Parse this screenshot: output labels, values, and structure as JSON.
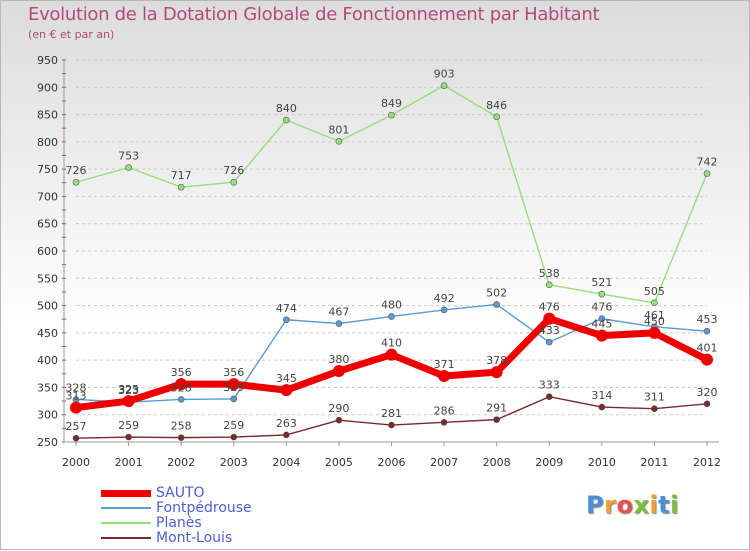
{
  "title": "Evolution de la Dotation Globale de Fonctionnement par Habitant",
  "subtitle": "(en € et par an)",
  "logo": {
    "text": "Proxiti",
    "letters": [
      {
        "char": "P",
        "color": "#4a8fd8"
      },
      {
        "char": "r",
        "color": "#f0a030"
      },
      {
        "char": "o",
        "color": "#e85050"
      },
      {
        "char": "x",
        "color": "#7cc040"
      },
      {
        "char": "i",
        "color": "#f0a030"
      },
      {
        "char": "t",
        "color": "#4a8fd8"
      },
      {
        "char": "i",
        "color": "#7cc040"
      }
    ]
  },
  "chart_data": {
    "type": "line",
    "x": [
      "2000",
      "2001",
      "2002",
      "2003",
      "2004",
      "2005",
      "2006",
      "2007",
      "2008",
      "2009",
      "2010",
      "2011",
      "2012"
    ],
    "ylim": [
      250,
      950
    ],
    "yticks": [
      250,
      300,
      350,
      400,
      450,
      500,
      550,
      600,
      650,
      700,
      750,
      800,
      850,
      900,
      950
    ],
    "grid": "horizontal dashed",
    "legend_position": "bottom-left",
    "series": [
      {
        "name": "SAUTO",
        "color": "#ee0000",
        "values": [
          313,
          325,
          356,
          356,
          345,
          380,
          410,
          371,
          378,
          476,
          445,
          450,
          401
        ]
      },
      {
        "name": "Fontpédrouse",
        "color": "#5b9bd5",
        "values": [
          328,
          323,
          328,
          329,
          474,
          467,
          480,
          492,
          502,
          433,
          476,
          461,
          453
        ]
      },
      {
        "name": "Planès",
        "color": "#96e07a",
        "values": [
          726,
          753,
          717,
          726,
          840,
          801,
          849,
          903,
          846,
          538,
          521,
          505,
          742
        ]
      },
      {
        "name": "Mont-Louis",
        "color": "#7a2a2a",
        "values": [
          257,
          259,
          258,
          259,
          263,
          290,
          281,
          286,
          291,
          333,
          314,
          311,
          320
        ]
      }
    ]
  }
}
